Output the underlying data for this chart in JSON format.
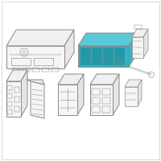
{
  "bg_color": "#ffffff",
  "border_color": "#cccccc",
  "highlight_color": "#29b6c8",
  "outline_color": "#888888",
  "line_width": 0.7,
  "fig_size": [
    2.0,
    2.0
  ],
  "dpi": 100
}
